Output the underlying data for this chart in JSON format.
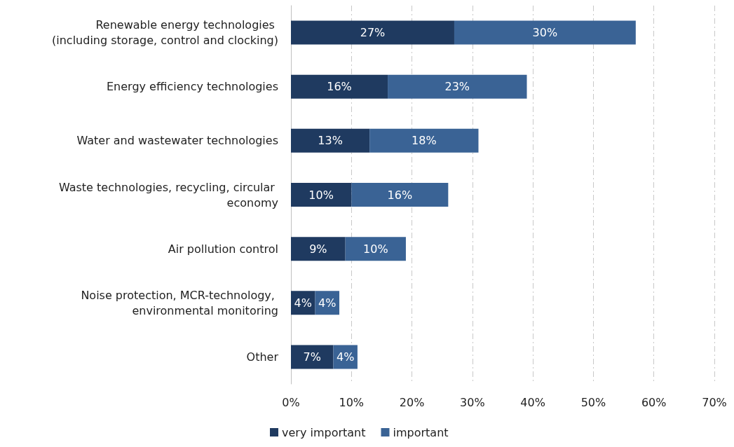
{
  "chart_data": {
    "type": "bar",
    "orientation": "horizontal",
    "stacked": true,
    "categories": [
      "Renewable energy technologies (including storage, control and clocking)",
      "Energy efficiency technologies",
      "Water and wastewater technologies",
      "Waste technologies, recycling, circular economy",
      "Air pollution control",
      "Noise protection, MCR-technology, environmental monitoring",
      "Other"
    ],
    "series": [
      {
        "name": "very important",
        "color": "#1f3a60",
        "values": [
          27,
          16,
          13,
          10,
          9,
          4,
          7
        ],
        "value_labels": [
          "27%",
          "16%",
          "13%",
          "10%",
          "9%",
          "4%",
          "7%"
        ]
      },
      {
        "name": "important",
        "color": "#3a6395",
        "values": [
          30,
          23,
          18,
          16,
          10,
          4,
          4
        ],
        "value_labels": [
          "30%",
          "23%",
          "18%",
          "16%",
          "10%",
          "4%",
          "4%"
        ]
      }
    ],
    "xlim": [
      0,
      70
    ],
    "xticks": [
      {
        "value": 0,
        "label": "0%"
      },
      {
        "value": 10,
        "label": "10%"
      },
      {
        "value": 20,
        "label": "20%"
      },
      {
        "value": 30,
        "label": "30%"
      },
      {
        "value": 40,
        "label": "40%"
      },
      {
        "value": 50,
        "label": "50%"
      },
      {
        "value": 60,
        "label": "60%"
      },
      {
        "value": 70,
        "label": "70%"
      }
    ],
    "grid": "x",
    "legend": "bottom"
  }
}
